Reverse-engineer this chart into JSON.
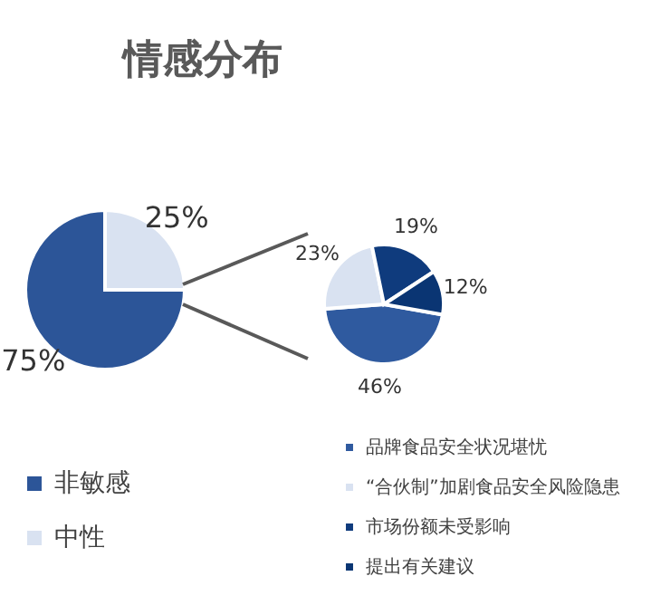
{
  "chart_data": [
    {
      "type": "pie",
      "title": "情感分布",
      "categories": [
        "非敏感",
        "中性"
      ],
      "values": [
        75,
        25
      ],
      "colors": [
        "#2c5598",
        "#d9e2f1"
      ],
      "value_labels": [
        "75%",
        "25%"
      ],
      "legend": "bottom"
    },
    {
      "type": "pie",
      "categories": [
        "品牌食品安全状况堪忧",
        "“合伙制”加剧食品安全风险隐患",
        "市场份额未受影响",
        "提出有关建议"
      ],
      "values": [
        46,
        23,
        19,
        12
      ],
      "colors": [
        "#2f5a9f",
        "#d9e2f1",
        "#0f3b7d",
        "#0a3573"
      ],
      "value_labels": [
        "46%",
        "23%",
        "19%",
        "12%"
      ],
      "legend": "bottom"
    }
  ]
}
